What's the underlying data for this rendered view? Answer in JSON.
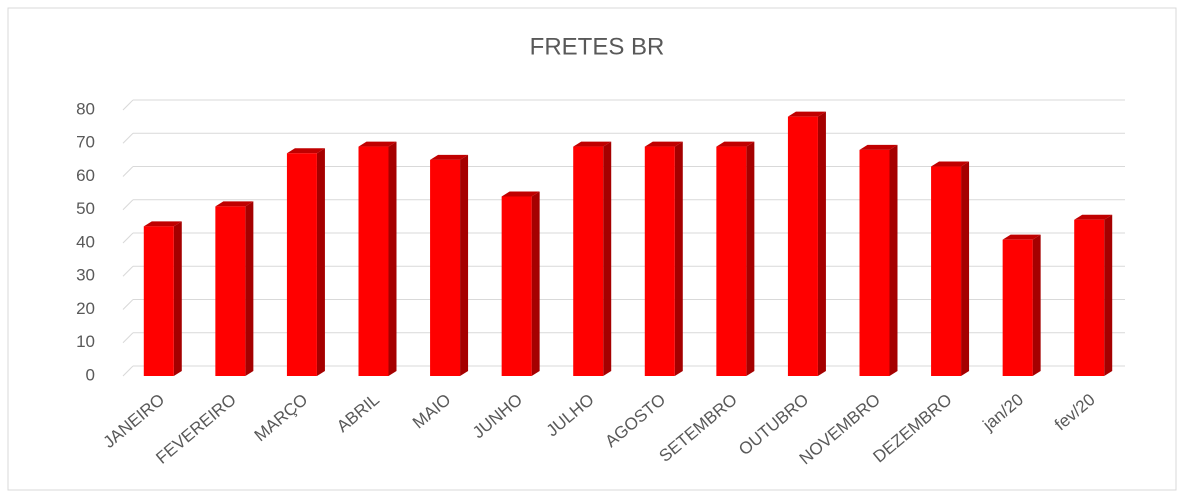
{
  "chart_data": {
    "type": "bar",
    "title": "FRETES BR",
    "categories": [
      "JANEIRO",
      "FEVEREIRO",
      "MARÇO",
      "ABRIL",
      "MAIO",
      "JUNHO",
      "JULHO",
      "AGOSTO",
      "SETEMBRO",
      "OUTUBRO",
      "NOVEMBRO",
      "DEZEMBRO",
      "jan/20",
      "fev/20"
    ],
    "values": [
      45,
      51,
      67,
      69,
      65,
      54,
      69,
      69,
      69,
      78,
      68,
      63,
      41,
      47
    ],
    "color": "#ff0000",
    "ylim": [
      0,
      80
    ],
    "yticks": [
      0,
      10,
      20,
      30,
      40,
      50,
      60,
      70,
      80
    ],
    "grid": true
  }
}
